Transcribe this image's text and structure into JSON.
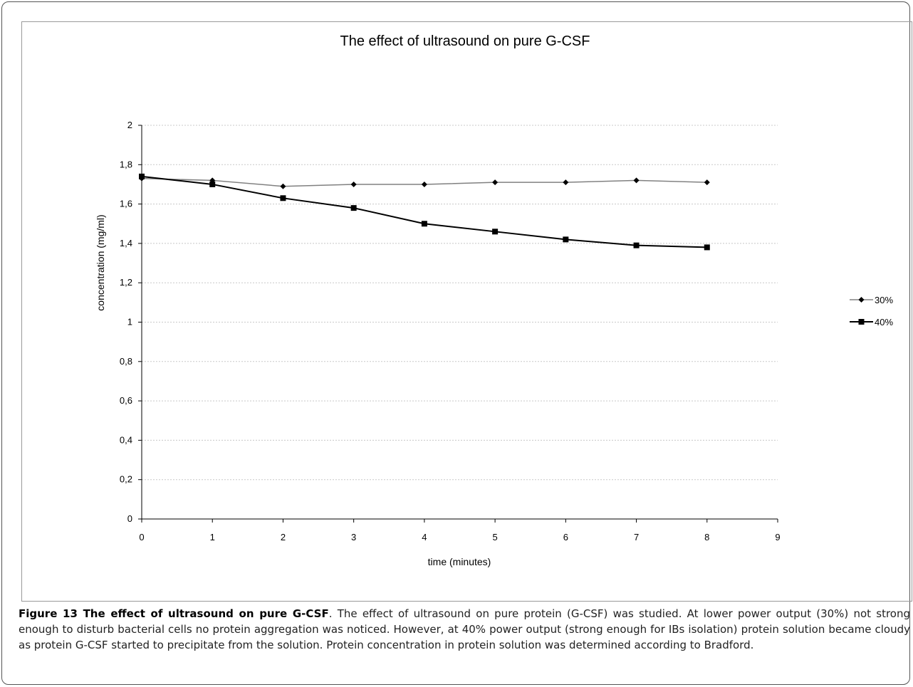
{
  "chart_data": {
    "type": "line",
    "title": "The effect of ultrasound on pure G-CSF",
    "xlabel": "time (minutes)",
    "ylabel": "concentration (mg/ml)",
    "xlim": [
      0,
      9
    ],
    "ylim": [
      0,
      2
    ],
    "x_ticks": [
      "0",
      "1",
      "2",
      "3",
      "4",
      "5",
      "6",
      "7",
      "8",
      "9"
    ],
    "y_ticks": [
      "0",
      "0,2",
      "0,4",
      "0,6",
      "0,8",
      "1",
      "1,2",
      "1,4",
      "1,6",
      "1,8",
      "2"
    ],
    "grid": "horizontal dashed",
    "legend_position": "right",
    "series": [
      {
        "name": "30%",
        "marker": "diamond",
        "color": "#808080",
        "x": [
          0,
          1,
          2,
          3,
          4,
          5,
          6,
          7,
          8
        ],
        "values": [
          1.73,
          1.72,
          1.69,
          1.7,
          1.7,
          1.71,
          1.71,
          1.72,
          1.71
        ]
      },
      {
        "name": "40%",
        "marker": "square",
        "color": "#000000",
        "x": [
          0,
          1,
          2,
          3,
          4,
          5,
          6,
          7,
          8
        ],
        "values": [
          1.74,
          1.7,
          1.63,
          1.58,
          1.5,
          1.46,
          1.42,
          1.39,
          1.38
        ]
      }
    ]
  },
  "caption": {
    "label": "Figure 13 The effect of ultrasound on pure G-CSF",
    "text": ". The effect of ultrasound on pure protein (G-CSF) was studied. At lower power output (30%) not strong enough to disturb bacterial cells no protein aggregation was noticed. However, at 40% power output (strong enough for IBs isolation) protein solution became cloudy as protein G-CSF started to precipitate from the solution. Protein concentration in protein solution was determined according to Bradford."
  }
}
